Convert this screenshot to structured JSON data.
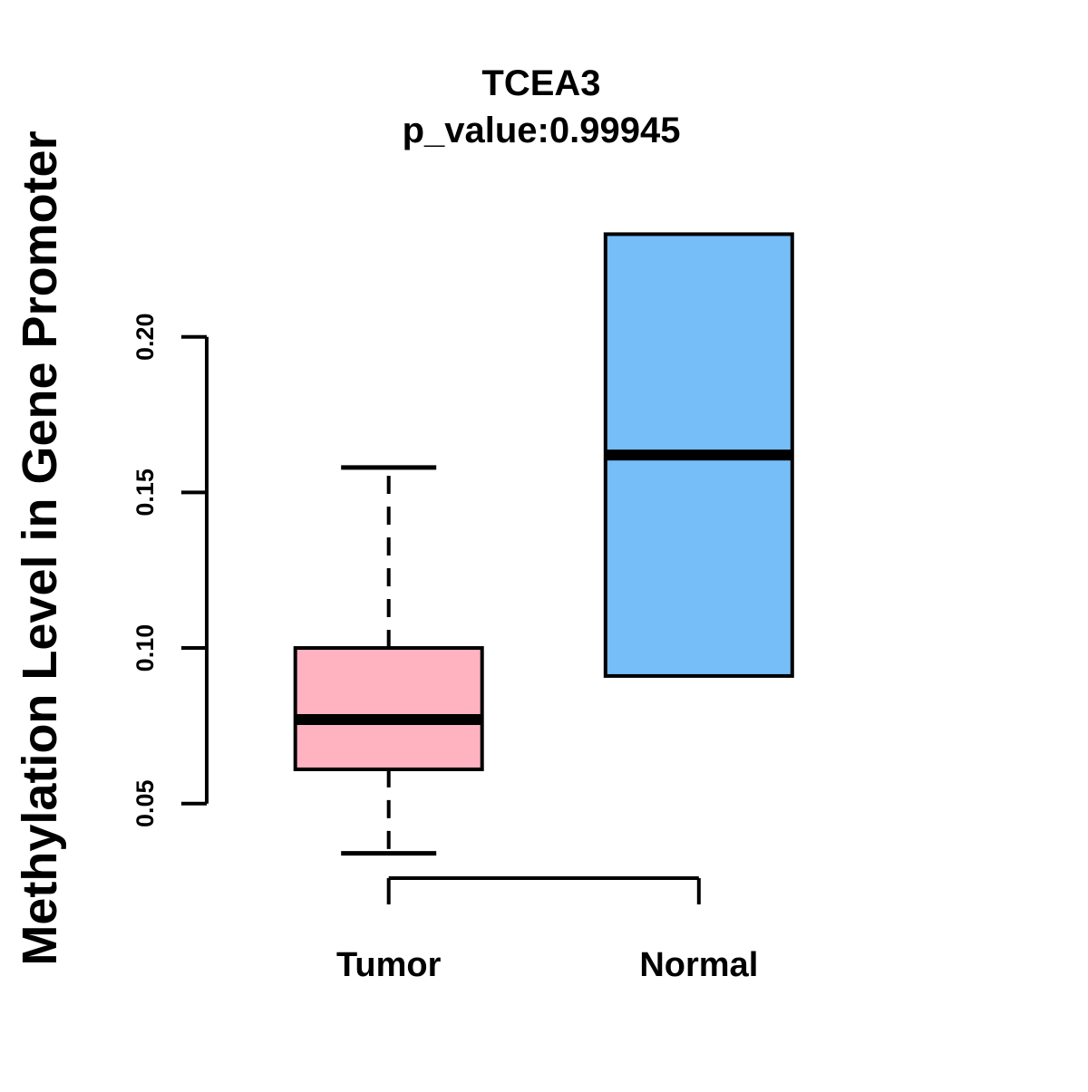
{
  "title": "TCEA3",
  "subtitle": "p_value:0.99945",
  "chart_data": {
    "type": "boxplot",
    "title": "TCEA3",
    "subtitle": "p_value:0.99945",
    "ylabel": "Methylation Level in Gene Promoter",
    "xlabel": "",
    "categories": [
      "Tumor",
      "Normal"
    ],
    "series": [
      {
        "name": "Tumor",
        "fill_color": "#FFB3C1",
        "whisker_low": 0.034,
        "q1": 0.061,
        "median": 0.077,
        "q3": 0.1,
        "whisker_high": 0.158
      },
      {
        "name": "Normal",
        "fill_color": "#75BEF8",
        "whisker_low": 0.091,
        "q1": 0.091,
        "median": 0.162,
        "q3": 0.233,
        "whisker_high": 0.233
      }
    ],
    "y_ticks": [
      0.05,
      0.1,
      0.15,
      0.2
    ],
    "y_tick_labels": [
      "0.05",
      "0.10",
      "0.15",
      "0.20"
    ],
    "ylim": [
      0.03,
      0.24
    ],
    "grid": false,
    "legend": "none",
    "line_color": "#000000",
    "background": "#FFFFFF"
  }
}
